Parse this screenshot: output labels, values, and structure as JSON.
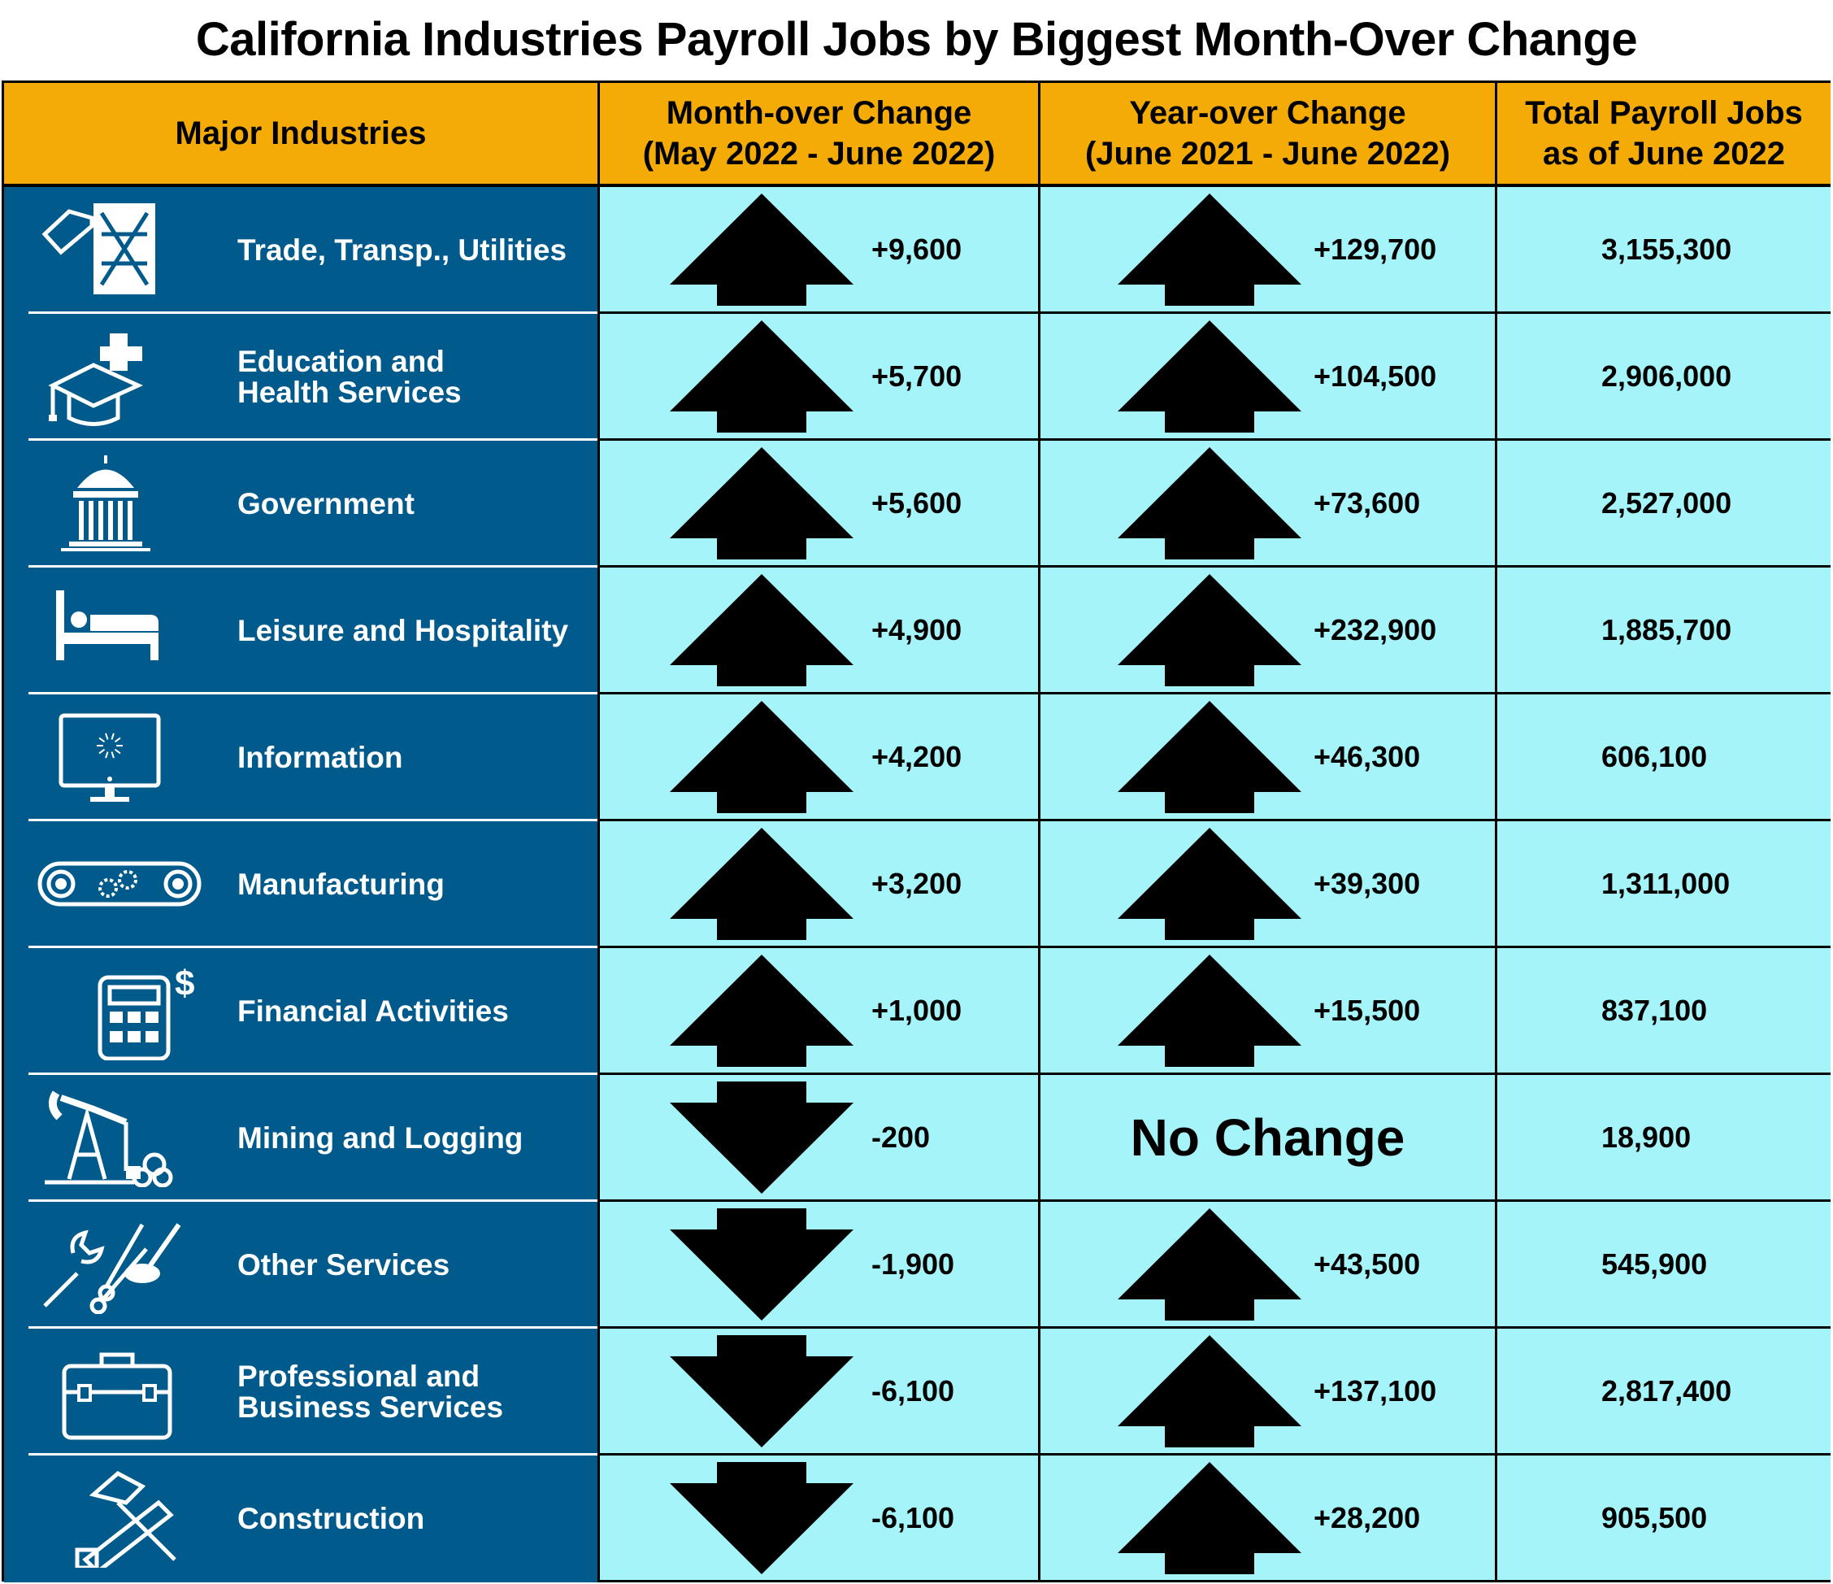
{
  "title": "California Industries Payroll Jobs by Biggest Month-Over Change",
  "headers": {
    "industries": "Major Industries",
    "month_over": "Month-over Change\n(May 2022 - June 2022)",
    "year_over": "Year-over Change\n(June 2021 - June 2022)",
    "total": "Total Payroll Jobs\nas of June 2022"
  },
  "colors": {
    "header_bg": "#f5ab06",
    "industry_bg": "#005a8c",
    "cell_bg": "#a4f4fa"
  },
  "rows": [
    {
      "industry": "Trade, Transp., Utilities",
      "icon": "shipping-crate-icon",
      "month_dir": "up",
      "month": "+9,600",
      "year_dir": "up",
      "year": "+129,700",
      "total": "3,155,300"
    },
    {
      "industry": "Education and\nHealth Services",
      "icon": "graduation-cap-hospital-icon",
      "month_dir": "up",
      "month": "+5,700",
      "year_dir": "up",
      "year": "+104,500",
      "total": "2,906,000"
    },
    {
      "industry": "Government",
      "icon": "capitol-building-icon",
      "month_dir": "up",
      "month": "+5,600",
      "year_dir": "up",
      "year": "+73,600",
      "total": "2,527,000"
    },
    {
      "industry": "Leisure and Hospitality",
      "icon": "bed-icon",
      "month_dir": "up",
      "month": "+4,900",
      "year_dir": "up",
      "year": "+232,900",
      "total": "1,885,700"
    },
    {
      "industry": "Information",
      "icon": "computer-monitor-icon",
      "month_dir": "up",
      "month": "+4,200",
      "year_dir": "up",
      "year": "+46,300",
      "total": "606,100"
    },
    {
      "industry": "Manufacturing",
      "icon": "conveyor-gears-icon",
      "month_dir": "up",
      "month": "+3,200",
      "year_dir": "up",
      "year": "+39,300",
      "total": "1,311,000"
    },
    {
      "industry": "Financial Activities",
      "icon": "calculator-dollar-icon",
      "month_dir": "up",
      "month": "+1,000",
      "year_dir": "up",
      "year": "+15,500",
      "total": "837,100"
    },
    {
      "industry": "Mining and Logging",
      "icon": "oil-pump-logs-icon",
      "month_dir": "down",
      "month": "-200",
      "year_dir": "none",
      "year": "No Change",
      "total": "18,900"
    },
    {
      "industry": "Other Services",
      "icon": "wrench-scissors-brush-icon",
      "month_dir": "down",
      "month": "-1,900",
      "year_dir": "up",
      "year": "+43,500",
      "total": "545,900"
    },
    {
      "industry": "Professional and\nBusiness Services",
      "icon": "briefcase-icon",
      "month_dir": "down",
      "month": "-6,100",
      "year_dir": "up",
      "year": "+137,100",
      "total": "2,817,400"
    },
    {
      "industry": "Construction",
      "icon": "hammer-saw-icon",
      "month_dir": "down",
      "month": "-6,100",
      "year_dir": "up",
      "year": "+28,200",
      "total": "905,500"
    }
  ]
}
